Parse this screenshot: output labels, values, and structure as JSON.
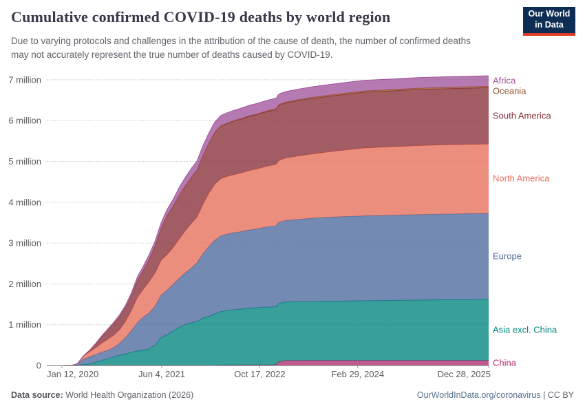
{
  "header": {
    "title": "Cumulative confirmed COVID-19 deaths by world region",
    "subtitle": "Due to varying protocols and challenges in the attribution of the cause of death, the number of confirmed deaths may not accurately represent the true number of deaths caused by COVID-19.",
    "logo": {
      "line1": "Our World",
      "line2": "in Data",
      "bg": "#0d2d55",
      "accent": "#dc3c2a"
    }
  },
  "footer": {
    "source_label": "Data source:",
    "source": "World Health Organization (2026)",
    "link": "OurWorldInData.org/coronavirus",
    "separator": "|",
    "license": "CC BY"
  },
  "chart_data": {
    "type": "area",
    "stacked": true,
    "title": "Cumulative confirmed COVID-19 deaths by world region",
    "unit": "deaths (millions)",
    "grid": true,
    "legend_position": "right-edge-labels",
    "ylim": [
      0,
      7.1
    ],
    "x_start_day": 0,
    "x_end_day": 2177,
    "x_ticks": [
      {
        "label": "Jan 12, 2020",
        "day": 0
      },
      {
        "label": "Jun 4, 2021",
        "day": 509
      },
      {
        "label": "Oct 17, 2022",
        "day": 1009
      },
      {
        "label": "Feb 29, 2024",
        "day": 1509
      },
      {
        "label": "Dec 28, 2025",
        "day": 2177
      }
    ],
    "y_ticks": [
      {
        "label": "0",
        "value": 0
      },
      {
        "label": "1 million",
        "value": 1
      },
      {
        "label": "2 million",
        "value": 2
      },
      {
        "label": "3 million",
        "value": 3
      },
      {
        "label": "4 million",
        "value": 4
      },
      {
        "label": "5 million",
        "value": 5
      },
      {
        "label": "6 million",
        "value": 6
      },
      {
        "label": "7 million",
        "value": 7
      }
    ],
    "days": [
      0,
      49,
      80,
      110,
      141,
      171,
      202,
      233,
      263,
      294,
      324,
      355,
      386,
      414,
      445,
      475,
      506,
      536,
      567,
      598,
      628,
      659,
      689,
      720,
      751,
      779,
      810,
      840,
      871,
      901,
      932,
      963,
      993,
      1024,
      1054,
      1084,
      1096,
      1102,
      1116,
      1144,
      1205,
      1266,
      1358,
      1450,
      1541,
      1632,
      1816,
      1997,
      2177
    ],
    "series": [
      {
        "name": "China",
        "color": "#b42b6f",
        "values": [
          0,
          0.003,
          0.003,
          0.005,
          0.005,
          0.005,
          0.005,
          0.005,
          0.005,
          0.005,
          0.005,
          0.005,
          0.005,
          0.005,
          0.005,
          0.005,
          0.005,
          0.005,
          0.005,
          0.005,
          0.005,
          0.005,
          0.005,
          0.005,
          0.005,
          0.006,
          0.013,
          0.014,
          0.014,
          0.014,
          0.015,
          0.015,
          0.015,
          0.016,
          0.016,
          0.017,
          0.03,
          0.077,
          0.101,
          0.12,
          0.121,
          0.121,
          0.122,
          0.122,
          0.122,
          0.122,
          0.122,
          0.122,
          0.122
        ]
      },
      {
        "name": "Asia excl. China",
        "color": "#00847e",
        "values": [
          0,
          0,
          0.006,
          0.018,
          0.03,
          0.075,
          0.12,
          0.16,
          0.2,
          0.25,
          0.28,
          0.32,
          0.35,
          0.375,
          0.4,
          0.5,
          0.68,
          0.75,
          0.84,
          0.93,
          1.0,
          1.04,
          1.07,
          1.16,
          1.2,
          1.26,
          1.31,
          1.33,
          1.35,
          1.36,
          1.38,
          1.39,
          1.4,
          1.41,
          1.415,
          1.42,
          1.422,
          1.425,
          1.43,
          1.435,
          1.44,
          1.445,
          1.45,
          1.46,
          1.465,
          1.47,
          1.48,
          1.49,
          1.5
        ]
      },
      {
        "name": "Europe",
        "color": "#4c6a9c",
        "values": [
          0,
          0,
          0.031,
          0.135,
          0.175,
          0.185,
          0.2,
          0.205,
          0.23,
          0.29,
          0.4,
          0.53,
          0.7,
          0.8,
          0.88,
          0.95,
          1.04,
          1.09,
          1.14,
          1.2,
          1.26,
          1.34,
          1.44,
          1.58,
          1.72,
          1.8,
          1.85,
          1.87,
          1.885,
          1.895,
          1.905,
          1.92,
          1.93,
          1.95,
          1.97,
          1.98,
          1.983,
          1.985,
          1.99,
          2.0,
          2.02,
          2.04,
          2.06,
          2.07,
          2.08,
          2.085,
          2.095,
          2.1,
          2.105
        ]
      },
      {
        "name": "North America",
        "color": "#e56e5a",
        "values": [
          0,
          0,
          0.006,
          0.072,
          0.125,
          0.165,
          0.22,
          0.27,
          0.3,
          0.33,
          0.39,
          0.5,
          0.62,
          0.68,
          0.77,
          0.81,
          0.85,
          0.87,
          0.9,
          0.96,
          1.03,
          1.09,
          1.12,
          1.21,
          1.31,
          1.37,
          1.4,
          1.41,
          1.42,
          1.43,
          1.44,
          1.46,
          1.47,
          1.48,
          1.49,
          1.5,
          1.503,
          1.51,
          1.52,
          1.53,
          1.55,
          1.57,
          1.6,
          1.63,
          1.66,
          1.67,
          1.69,
          1.7,
          1.7
        ]
      },
      {
        "name": "South America",
        "color": "#883039",
        "values": [
          0,
          0,
          0.001,
          0.01,
          0.035,
          0.095,
          0.155,
          0.22,
          0.28,
          0.32,
          0.345,
          0.365,
          0.42,
          0.46,
          0.55,
          0.66,
          0.79,
          0.96,
          1.02,
          1.07,
          1.1,
          1.13,
          1.15,
          1.2,
          1.23,
          1.27,
          1.29,
          1.3,
          1.31,
          1.32,
          1.325,
          1.33,
          1.33,
          1.335,
          1.34,
          1.345,
          1.347,
          1.35,
          1.35,
          1.35,
          1.355,
          1.36,
          1.36,
          1.365,
          1.37,
          1.37,
          1.375,
          1.375,
          1.38
        ]
      },
      {
        "name": "Oceania",
        "color": "#9a5129",
        "values": [
          0,
          0,
          0,
          0,
          0,
          0,
          0,
          0.001,
          0.001,
          0.001,
          0.001,
          0.001,
          0.001,
          0.001,
          0.001,
          0.001,
          0.001,
          0.001,
          0.001,
          0.002,
          0.002,
          0.002,
          0.003,
          0.004,
          0.005,
          0.007,
          0.009,
          0.01,
          0.011,
          0.012,
          0.014,
          0.015,
          0.016,
          0.017,
          0.019,
          0.02,
          0.02,
          0.021,
          0.022,
          0.023,
          0.025,
          0.027,
          0.029,
          0.03,
          0.031,
          0.031,
          0.032,
          0.033,
          0.033
        ]
      },
      {
        "name": "Africa",
        "color": "#a2559c",
        "values": [
          0,
          0,
          0,
          0.002,
          0.004,
          0.011,
          0.02,
          0.03,
          0.036,
          0.045,
          0.052,
          0.065,
          0.087,
          0.104,
          0.112,
          0.121,
          0.13,
          0.144,
          0.167,
          0.19,
          0.205,
          0.216,
          0.222,
          0.235,
          0.242,
          0.248,
          0.251,
          0.252,
          0.253,
          0.254,
          0.255,
          0.256,
          0.256,
          0.257,
          0.257,
          0.258,
          0.258,
          0.258,
          0.258,
          0.258,
          0.258,
          0.259,
          0.259,
          0.259,
          0.259,
          0.259,
          0.259,
          0.259,
          0.259
        ]
      }
    ]
  }
}
